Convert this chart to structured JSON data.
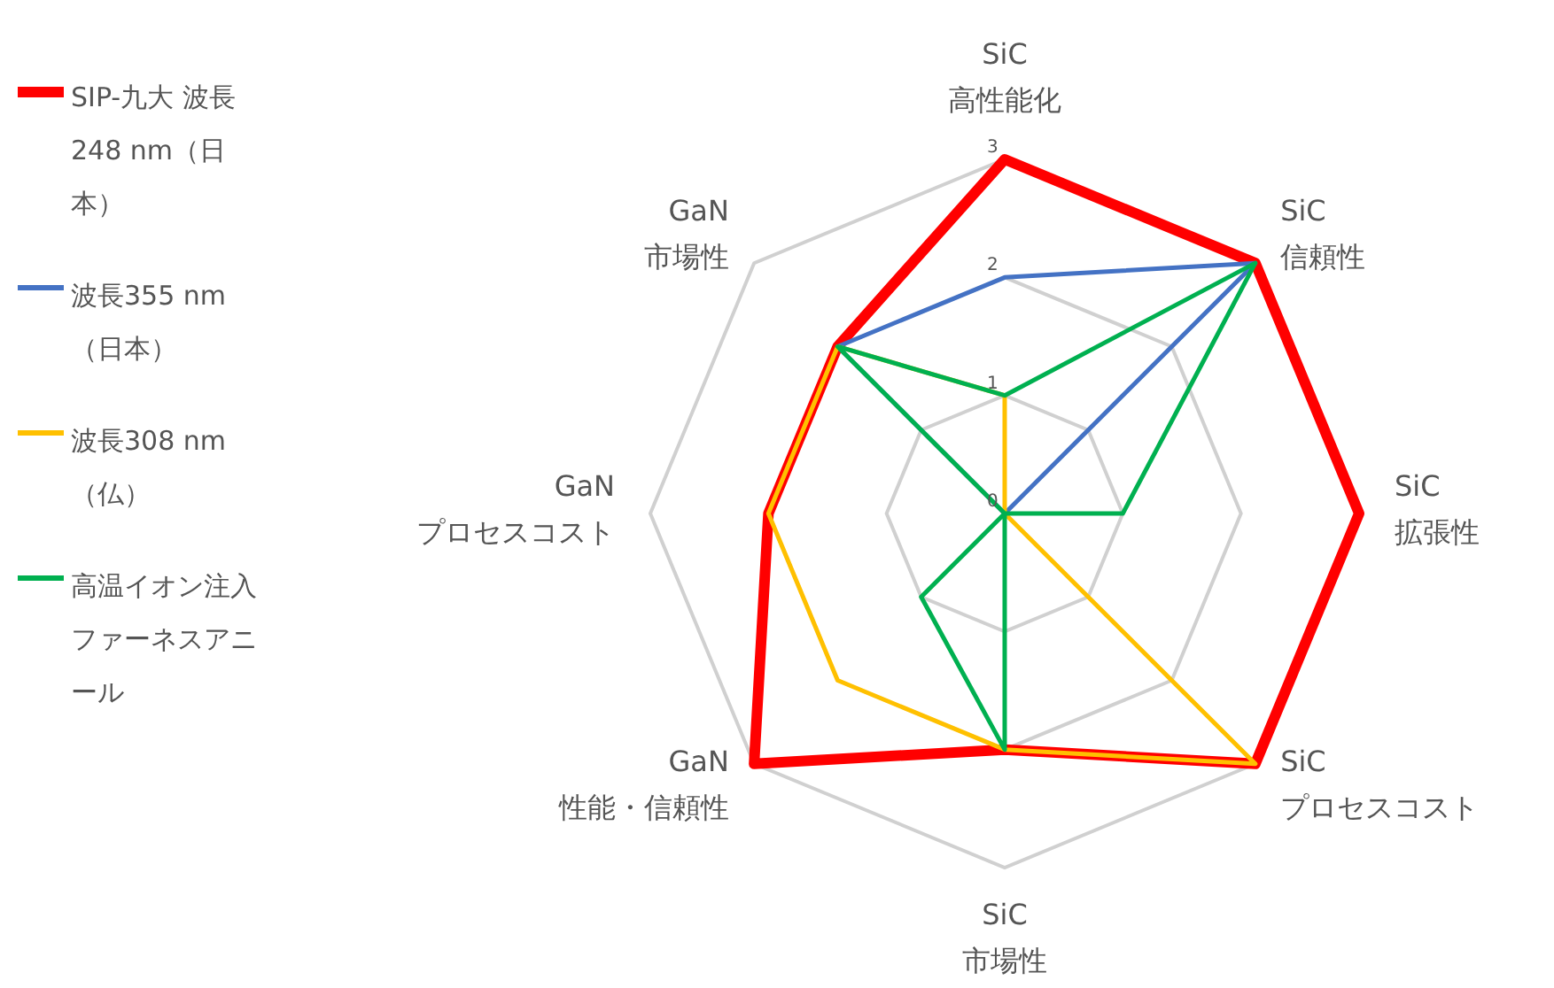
{
  "chart_data": {
    "type": "radar",
    "categories": [
      "SiC 高性能化",
      "SiC 信頼性",
      "SiC 拡張性",
      "SiC プロセスコスト",
      "SiC 市場性",
      "GaN 性能・信頼性",
      "GaN プロセスコスト",
      "GaN 市場性"
    ],
    "series": [
      {
        "name": "SIP-九大 波長248 nm（日本）",
        "color": "#ff0000",
        "values": [
          3,
          3,
          3,
          3,
          2,
          3,
          2,
          2
        ]
      },
      {
        "name": "波長355 nm（日本）",
        "color": "#4472c4",
        "values": [
          2,
          3,
          0,
          0,
          0,
          0,
          0,
          2
        ]
      },
      {
        "name": "波長308 nm（仏）",
        "color": "#ffc000",
        "values": [
          1,
          0,
          0,
          3,
          2,
          2,
          2,
          2
        ]
      },
      {
        "name": "高温イオン注入ファーネスアニール",
        "color": "#00b050",
        "values": [
          1,
          3,
          1,
          0,
          2,
          1,
          0,
          2
        ]
      }
    ],
    "ylim": [
      0,
      3
    ],
    "yticks": [
      0,
      1,
      2,
      3
    ],
    "grid": true,
    "legend": "left"
  }
}
